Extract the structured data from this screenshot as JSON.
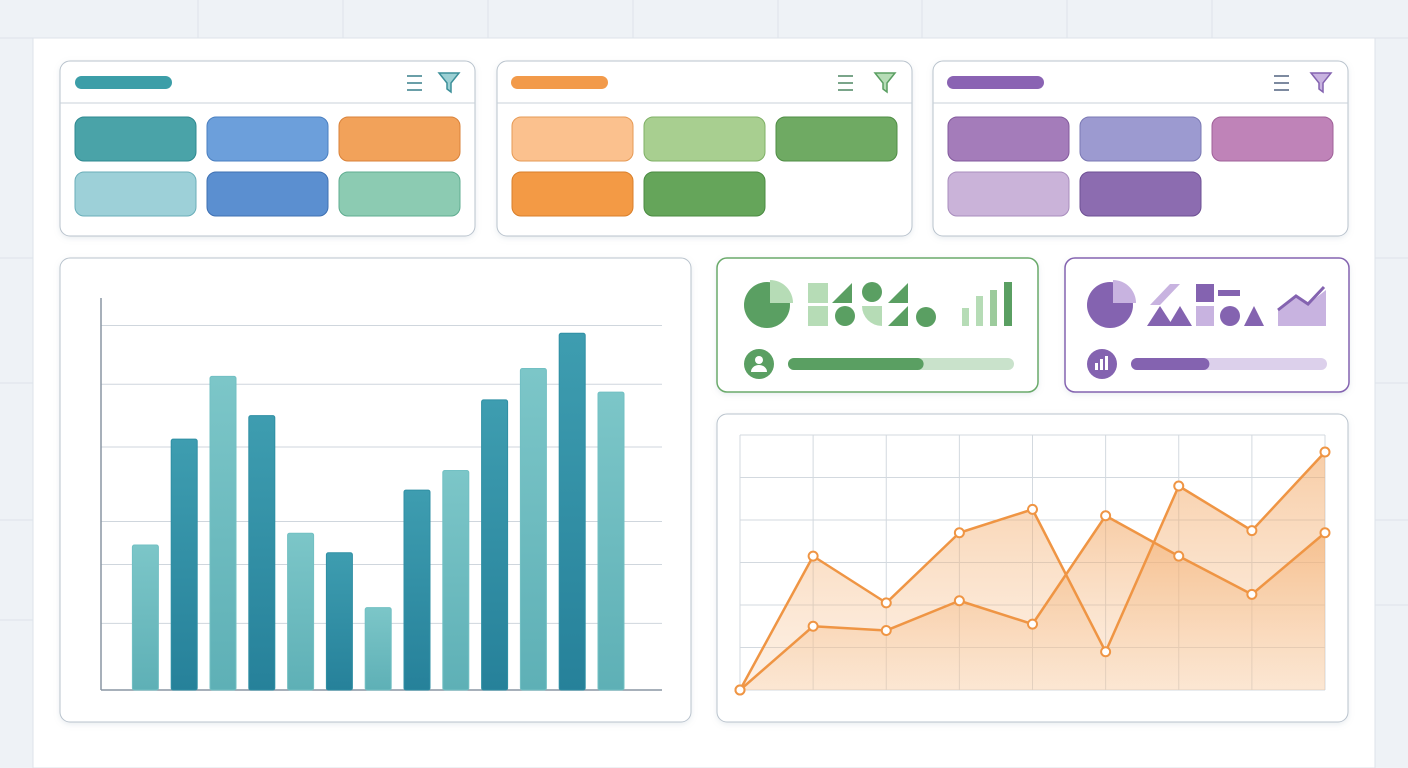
{
  "chart_data": [
    {
      "type": "bar",
      "categories": [
        null,
        null,
        null,
        null,
        null,
        null,
        null,
        null,
        null,
        null,
        null,
        null,
        null
      ],
      "values": [
        37,
        64,
        80,
        70,
        40,
        35,
        21,
        51,
        56,
        74,
        82,
        91,
        76
      ],
      "colors": [
        "#72c0c3",
        "#2f8fa4"
      ],
      "ylim": [
        0,
        100
      ],
      "yticks": [
        0,
        17,
        32,
        43,
        62,
        78,
        93
      ],
      "grid": true
    },
    {
      "type": "line",
      "categories": [
        null,
        null,
        null,
        null,
        null,
        null,
        null,
        null,
        null
      ],
      "series": [
        {
          "color": "#ef9544",
          "values": [
            0,
            63,
            41,
            74,
            85,
            18,
            96,
            75,
            112
          ]
        },
        {
          "color": "#ef9544",
          "values": [
            0,
            30,
            28,
            42,
            31,
            82,
            63,
            45,
            74
          ]
        }
      ],
      "ylim": [
        0,
        120
      ],
      "yticks": [
        0,
        20,
        40,
        60,
        80,
        100,
        120
      ],
      "grid": true
    }
  ],
  "progress": [
    {
      "value": 60,
      "color": "#5a9f62",
      "track": "#c9e2cb"
    },
    {
      "value": 40,
      "color": "#8463b0",
      "track": "#dcd0eb"
    }
  ]
}
